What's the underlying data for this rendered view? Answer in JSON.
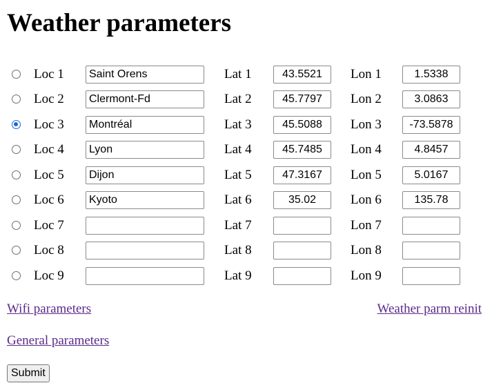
{
  "page": {
    "title": "Weather parameters"
  },
  "locations": [
    {
      "label": "Loc 1",
      "name": "Saint Orens",
      "lat_label": "Lat 1",
      "lat": "43.5521",
      "lon_label": "Lon 1",
      "lon": "1.5338",
      "selected": false
    },
    {
      "label": "Loc 2",
      "name": "Clermont-Fd",
      "lat_label": "Lat 2",
      "lat": "45.7797",
      "lon_label": "Lon 2",
      "lon": "3.0863",
      "selected": false
    },
    {
      "label": "Loc 3",
      "name": "Montréal",
      "lat_label": "Lat 3",
      "lat": "45.5088",
      "lon_label": "Lon 3",
      "lon": "-73.5878",
      "selected": true
    },
    {
      "label": "Loc 4",
      "name": "Lyon",
      "lat_label": "Lat 4",
      "lat": "45.7485",
      "lon_label": "Lon 4",
      "lon": "4.8457",
      "selected": false
    },
    {
      "label": "Loc 5",
      "name": "Dijon",
      "lat_label": "Lat 5",
      "lat": "47.3167",
      "lon_label": "Lon 5",
      "lon": "5.0167",
      "selected": false
    },
    {
      "label": "Loc 6",
      "name": "Kyoto",
      "lat_label": "Lat 6",
      "lat": "35.02",
      "lon_label": "Lon 6",
      "lon": "135.78",
      "selected": false
    },
    {
      "label": "Loc 7",
      "name": "",
      "lat_label": "Lat 7",
      "lat": "",
      "lon_label": "Lon 7",
      "lon": "",
      "selected": false
    },
    {
      "label": "Loc 8",
      "name": "",
      "lat_label": "Lat 8",
      "lat": "",
      "lon_label": "Lon 8",
      "lon": "",
      "selected": false
    },
    {
      "label": "Loc 9",
      "name": "",
      "lat_label": "Lat 9",
      "lat": "",
      "lon_label": "Lon 9",
      "lon": "",
      "selected": false
    }
  ],
  "links": {
    "wifi": "Wifi parameters",
    "reinit": "Weather parm reinit",
    "general": "General parameters"
  },
  "form": {
    "submit_label": "Submit"
  },
  "colors": {
    "link": "#5b2a8a",
    "radio_selected": "#1a66d6"
  }
}
